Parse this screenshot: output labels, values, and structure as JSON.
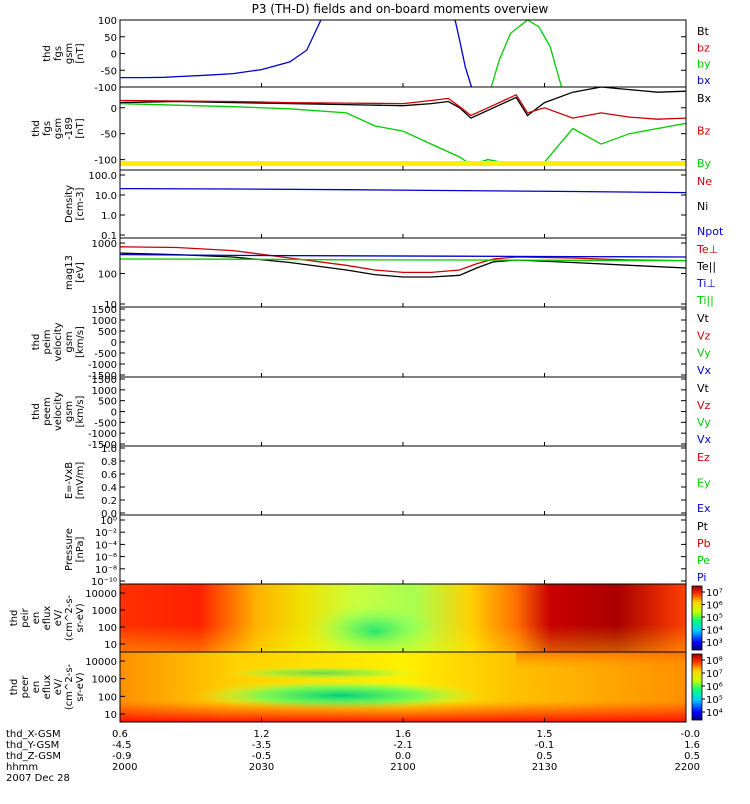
{
  "title": "P3 (TH-D) fields and on-board moments overview",
  "chart_data": [
    {
      "type": "line",
      "panel": "fgs",
      "ylabel": [
        "thd",
        "fgs",
        "gsm",
        "[nT]"
      ],
      "ylim": [
        -100,
        100
      ],
      "yticks": [
        100,
        50,
        0,
        -50,
        -100
      ],
      "legend": [
        {
          "label": "Bt",
          "color": "#000000"
        },
        {
          "label": "bz",
          "color": "#cc0000"
        },
        {
          "label": "by",
          "color": "#00cc00"
        },
        {
          "label": "bx",
          "color": "#0000cc"
        }
      ],
      "series": [
        {
          "name": "bx",
          "color": "#0000cc",
          "t": [
            0,
            0.04,
            0.08,
            0.1,
            0.15,
            0.2,
            0.25,
            0.3,
            0.33,
            0.355
          ],
          "values": [
            -72,
            -72,
            -71,
            -69,
            -65,
            -60,
            -48,
            -25,
            10,
            100
          ]
        },
        {
          "name": "bx",
          "color": "#0000cc",
          "t": [
            0.592,
            0.6,
            0.61,
            0.621
          ],
          "values": [
            100,
            40,
            -40,
            -100
          ]
        },
        {
          "name": "by",
          "color": "#00cc00",
          "t": [
            0.656,
            0.67,
            0.69,
            0.72,
            0.74,
            0.76,
            0.78
          ],
          "values": [
            -100,
            -20,
            60,
            100,
            80,
            20,
            -100
          ]
        }
      ]
    },
    {
      "type": "line",
      "panel": "fgs-shifted",
      "ylabel": [
        "thd",
        "fgs",
        "gsm",
        "-189",
        "[nT]"
      ],
      "ylim": [
        -120,
        40
      ],
      "yticks": [
        0,
        -50,
        -100
      ],
      "legend": [
        {
          "label": "Bx",
          "color": "#000000"
        },
        {
          "label": "Bz",
          "color": "#cc0000"
        },
        {
          "label": "By",
          "color": "#00cc00"
        }
      ],
      "series": [
        {
          "name": "Bx",
          "color": "#000000",
          "t": [
            0,
            0.1,
            0.2,
            0.3,
            0.4,
            0.5,
            0.55,
            0.58,
            0.6,
            0.62,
            0.65,
            0.7,
            0.72,
            0.75,
            0.8,
            0.85,
            0.9,
            0.95,
            1
          ],
          "values": [
            10,
            12,
            10,
            8,
            6,
            4,
            8,
            12,
            0,
            -20,
            -5,
            20,
            -15,
            10,
            30,
            40,
            35,
            30,
            32
          ]
        },
        {
          "name": "Bz",
          "color": "#cc0000",
          "t": [
            0,
            0.1,
            0.2,
            0.3,
            0.4,
            0.5,
            0.55,
            0.58,
            0.6,
            0.62,
            0.65,
            0.7,
            0.72,
            0.75,
            0.8,
            0.85,
            0.9,
            0.95,
            1
          ],
          "values": [
            14,
            13,
            12,
            10,
            9,
            8,
            14,
            18,
            2,
            -15,
            0,
            25,
            -10,
            0,
            -20,
            -10,
            -18,
            -22,
            -20
          ]
        },
        {
          "name": "By",
          "color": "#00cc00",
          "t": [
            0,
            0.1,
            0.2,
            0.3,
            0.4,
            0.45,
            0.5,
            0.55,
            0.6,
            0.62,
            0.65,
            0.7,
            0.75,
            0.8,
            0.85,
            0.9,
            0.95,
            1
          ],
          "values": [
            8,
            5,
            2,
            -2,
            -10,
            -35,
            -45,
            -70,
            -95,
            -110,
            -100,
            -110,
            -105,
            -40,
            -70,
            -50,
            -40,
            -30
          ]
        }
      ]
    },
    {
      "type": "line",
      "panel": "density",
      "ylabel": [
        "Density",
        "[cm-3]"
      ],
      "yscale": "log",
      "ylim": [
        0.1,
        200
      ],
      "yticks": [
        "100.0",
        "10.0",
        "1.0",
        "0.1"
      ],
      "legend": [
        {
          "label": "Ne",
          "color": "#cc0000"
        },
        {
          "label": "Ni",
          "color": "#000000"
        },
        {
          "label": "Npot",
          "color": "#0000cc"
        }
      ],
      "series": [
        {
          "name": "Npot",
          "color": "#0000cc",
          "t": [
            0,
            0.2,
            0.4,
            0.6,
            0.8,
            1
          ],
          "values": [
            25,
            24,
            22,
            20,
            18,
            16
          ]
        }
      ]
    },
    {
      "type": "line",
      "panel": "temperature",
      "ylabel": [
        "mag13",
        "[eV]"
      ],
      "yscale": "log",
      "ylim": [
        10,
        1200
      ],
      "yticks": [
        "1000",
        "100",
        "10"
      ],
      "legend": [
        {
          "label": "Te⊥",
          "color": "#cc0000"
        },
        {
          "label": "Te||",
          "color": "#000000"
        },
        {
          "label": "Ti⊥",
          "color": "#0000cc"
        },
        {
          "label": "Ti||",
          "color": "#00cc00"
        }
      ],
      "series": [
        {
          "name": "Te⊥",
          "color": "#cc0000",
          "t": [
            0,
            0.1,
            0.2,
            0.3,
            0.4,
            0.45,
            0.5,
            0.55,
            0.6,
            0.63,
            0.66,
            0.7,
            0.8,
            0.9,
            1
          ],
          "values": [
            650,
            620,
            500,
            300,
            180,
            130,
            110,
            110,
            130,
            200,
            280,
            320,
            300,
            260,
            250
          ]
        },
        {
          "name": "Te||",
          "color": "#000000",
          "t": [
            0,
            0.1,
            0.2,
            0.3,
            0.4,
            0.45,
            0.5,
            0.55,
            0.6,
            0.63,
            0.66,
            0.7,
            0.8,
            0.9,
            1
          ],
          "values": [
            420,
            380,
            320,
            220,
            130,
            95,
            80,
            80,
            90,
            150,
            230,
            260,
            220,
            180,
            150
          ]
        },
        {
          "name": "Ti⊥",
          "color": "#0000cc",
          "t": [
            0,
            0.2,
            0.4,
            0.6,
            0.8,
            1
          ],
          "values": [
            380,
            360,
            350,
            340,
            330,
            320
          ]
        },
        {
          "name": "Ti||",
          "color": "#00cc00",
          "t": [
            0,
            0.2,
            0.4,
            0.6,
            0.8,
            1
          ],
          "values": [
            280,
            275,
            265,
            260,
            255,
            250
          ]
        }
      ]
    },
    {
      "type": "line",
      "panel": "peim-velocity",
      "ylabel": [
        "thd",
        "peim",
        "velocity",
        "gsm",
        "[km/s]"
      ],
      "ylim": [
        -1500,
        1500
      ],
      "yticks": [
        "1500",
        "1000",
        "500",
        "0",
        "-500",
        "-1000",
        "-1500"
      ],
      "legend": [
        {
          "label": "Vt",
          "color": "#000000"
        },
        {
          "label": "Vz",
          "color": "#cc0000"
        },
        {
          "label": "Vy",
          "color": "#00cc00"
        },
        {
          "label": "Vx",
          "color": "#0000cc"
        }
      ],
      "series": []
    },
    {
      "type": "line",
      "panel": "peem-velocity",
      "ylabel": [
        "thd",
        "peem",
        "velocity",
        "gsm",
        "[km/s]"
      ],
      "ylim": [
        -1500,
        1500
      ],
      "yticks": [
        "1500",
        "1000",
        "500",
        "0",
        "-500",
        "-1000",
        "-1500"
      ],
      "legend": [
        {
          "label": "Vt",
          "color": "#000000"
        },
        {
          "label": "Vz",
          "color": "#cc0000"
        },
        {
          "label": "Vy",
          "color": "#00cc00"
        },
        {
          "label": "Vx",
          "color": "#0000cc"
        }
      ],
      "series": []
    },
    {
      "type": "line",
      "panel": "efield",
      "ylabel": [
        "E=-VxB",
        "[mV/m]"
      ],
      "ylim": [
        0,
        1
      ],
      "yticks": [
        "1.0",
        "0.8",
        "0.6",
        "0.4",
        "0.2",
        "0.0"
      ],
      "legend": [
        {
          "label": "Ez",
          "color": "#cc0000"
        },
        {
          "label": "Ey",
          "color": "#00cc00"
        },
        {
          "label": "Ex",
          "color": "#0000cc"
        }
      ],
      "series": []
    },
    {
      "type": "line",
      "panel": "pressure",
      "ylabel": [
        "Pressure",
        "[nPa]"
      ],
      "yscale": "log",
      "ylim": [
        1e-10,
        10
      ],
      "yticks": [
        "10⁰",
        "10⁻²",
        "10⁻⁴",
        "10⁻⁶",
        "10⁻⁸",
        "10⁻¹⁰"
      ],
      "legend": [
        {
          "label": "Pt",
          "color": "#000000"
        },
        {
          "label": "Pb",
          "color": "#cc0000"
        },
        {
          "label": "Pe",
          "color": "#00cc00"
        },
        {
          "label": "Pi",
          "color": "#0000cc"
        }
      ],
      "series": []
    },
    {
      "type": "heatmap",
      "panel": "peir-spectrogram",
      "ylabel": [
        "thd",
        "peir",
        "en",
        "eflux",
        "eV/",
        "(cm^2-s-",
        "sr-eV)"
      ],
      "yscale": "log",
      "yticks": [
        "10000",
        "1000",
        "100",
        "10"
      ],
      "colorbar_ticks": [
        "10⁷",
        "10⁶",
        "10⁵",
        "10⁴",
        "10³"
      ],
      "colorbar_range": [
        1000,
        10000000
      ]
    },
    {
      "type": "heatmap",
      "panel": "peer-spectrogram",
      "ylabel": [
        "thd",
        "peer",
        "en",
        "eflux",
        "eV/",
        "(cm^2-s-",
        "sr-eV)"
      ],
      "yscale": "log",
      "yticks": [
        "10000",
        "1000",
        "100",
        "10"
      ],
      "colorbar_ticks": [
        "10⁸",
        "10⁷",
        "10⁶",
        "10⁵",
        "10⁴"
      ],
      "colorbar_range": [
        10000,
        100000000
      ]
    }
  ],
  "time_axis": {
    "row_labels": [
      "thd_X-GSM",
      "thd_Y-GSM",
      "thd_Z-GSM",
      "hhmm",
      "2007 Dec 28"
    ],
    "ticks": [
      {
        "x": "0.6",
        "y": "-4.5",
        "z": "-0.9",
        "hhmm": "2000"
      },
      {
        "x": "1.2",
        "y": "-3.5",
        "z": "-0.5",
        "hhmm": "2030"
      },
      {
        "x": "1.6",
        "y": "-2.1",
        "z": "0.0",
        "hhmm": "2100"
      },
      {
        "x": "1.5",
        "y": "-0.1",
        "z": "0.5",
        "hhmm": "2130"
      },
      {
        "x": "-0.0",
        "y": "1.6",
        "z": "0.5",
        "hhmm": "2200"
      }
    ]
  }
}
